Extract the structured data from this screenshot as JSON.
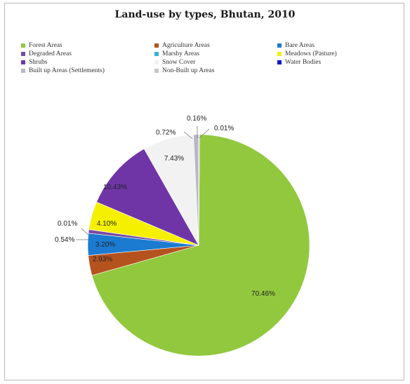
{
  "chart_data": {
    "type": "pie",
    "title": "Land-use by types, Bhutan, 2010",
    "legend_placement": "top",
    "series": [
      {
        "name": "Forest Areas",
        "value": 70.46,
        "label": "70.46%",
        "color": "#92c83e"
      },
      {
        "name": "Agriculture Areas",
        "value": 2.93,
        "label": "2.93%",
        "color": "#b5531f"
      },
      {
        "name": "Bare Areas",
        "value": 3.2,
        "label": "3.20%",
        "color": "#1b7bd1"
      },
      {
        "name": "Degraded Areas",
        "value": 0.54,
        "label": "0.54%",
        "color": "#7a4aa0"
      },
      {
        "name": "Marshy Areas",
        "value": 0.01,
        "label": "0.01%",
        "color": "#39b3cf"
      },
      {
        "name": "Meadows (Pasture)",
        "value": 4.1,
        "label": "4.10%",
        "color": "#f5f000"
      },
      {
        "name": "Shrubs",
        "value": 10.43,
        "label": "10.43%",
        "color": "#6f35a6"
      },
      {
        "name": "Snow Cover",
        "value": 7.43,
        "label": "7.43%",
        "color": "#f2f2f2"
      },
      {
        "name": "Built up Areas (Settlements)",
        "value": 0.72,
        "label": "0.72%",
        "color": "#b7b7c7"
      },
      {
        "name": "Non-Built up Areas",
        "value": 0.16,
        "label": "0.16%",
        "color": "#c8c8c8"
      },
      {
        "name": "Water Bodies",
        "value": 0.01,
        "label": "0.01%",
        "color": "#1212cc"
      }
    ],
    "legend_order": [
      "Forest Areas",
      "Agriculture Areas",
      "Bare Areas",
      "Degraded Areas",
      "Marshy Areas",
      "Meadows (Pasture)",
      "Shrubs",
      "Snow Cover",
      "Water Bodies",
      "Built up Areas (Settlements)",
      "Non-Built up Areas"
    ]
  }
}
